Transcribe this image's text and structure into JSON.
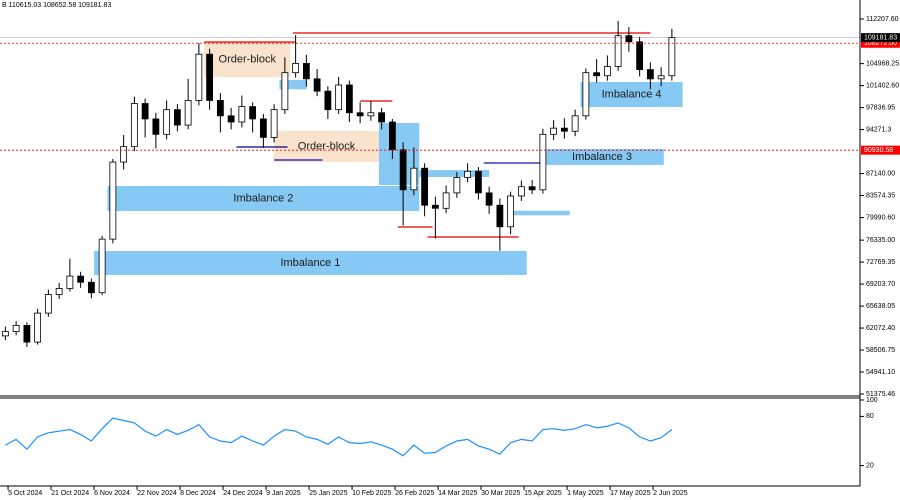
{
  "chart_data": {
    "type": "candlestick",
    "header": "B 110615.03 108652.58 109181.83",
    "x": [
      2,
      6,
      10,
      14,
      18,
      22,
      26,
      30,
      34,
      38,
      42,
      46,
      50,
      54,
      58,
      62,
      66,
      70,
      74,
      78,
      82,
      86,
      90,
      94,
      98,
      102,
      106,
      110,
      114,
      118,
      122,
      126,
      130,
      134,
      138,
      142,
      146,
      150,
      154,
      158,
      162,
      166,
      170,
      174,
      178,
      182,
      186,
      190,
      194,
      198,
      202,
      206,
      210,
      214,
      218,
      222,
      226,
      230,
      234,
      238,
      242,
      246,
      250
    ],
    "candles": [
      [
        60800,
        62300,
        60100,
        61500
      ],
      [
        61500,
        63200,
        60900,
        62500
      ],
      [
        62500,
        63000,
        59000,
        59800
      ],
      [
        59800,
        65200,
        59400,
        64500
      ],
      [
        64500,
        68300,
        63900,
        67500
      ],
      [
        67500,
        69400,
        66800,
        68500
      ],
      [
        68500,
        73300,
        68000,
        70500
      ],
      [
        70500,
        71200,
        68600,
        69500
      ],
      [
        69500,
        70100,
        66900,
        67800
      ],
      [
        67800,
        77000,
        67400,
        76500
      ],
      [
        76500,
        89500,
        75800,
        89000
      ],
      [
        89000,
        93400,
        87800,
        91500
      ],
      [
        91500,
        99600,
        90800,
        98500
      ],
      [
        98500,
        99300,
        93000,
        96000
      ],
      [
        96000,
        97000,
        91200,
        93500
      ],
      [
        93500,
        99000,
        92700,
        97500
      ],
      [
        97500,
        98400,
        94000,
        95000
      ],
      [
        95000,
        102500,
        94300,
        99000
      ],
      [
        99000,
        108300,
        98200,
        106500
      ],
      [
        106500,
        107400,
        97500,
        99000
      ],
      [
        99000,
        100200,
        93800,
        96500
      ],
      [
        96500,
        97800,
        94300,
        95500
      ],
      [
        95500,
        99800,
        94600,
        98000
      ],
      [
        98000,
        98700,
        93800,
        96000
      ],
      [
        96000,
        96800,
        91300,
        93000
      ],
      [
        93000,
        98400,
        92200,
        97500
      ],
      [
        97500,
        106000,
        96800,
        103500
      ],
      [
        103500,
        109600,
        102700,
        105000
      ],
      [
        105000,
        106400,
        101200,
        102500
      ],
      [
        102500,
        104100,
        99700,
        100500
      ],
      [
        100500,
        101300,
        96000,
        97500
      ],
      [
        97500,
        102800,
        96800,
        101500
      ],
      [
        101500,
        102200,
        95500,
        97000
      ],
      [
        97000,
        98700,
        95300,
        96500
      ],
      [
        96500,
        98900,
        95700,
        97000
      ],
      [
        97000,
        97800,
        94300,
        95500
      ],
      [
        95500,
        96000,
        89500,
        91000
      ],
      [
        91000,
        92200,
        78700,
        84500
      ],
      [
        84500,
        91400,
        83600,
        88000
      ],
      [
        88000,
        88800,
        80200,
        82000
      ],
      [
        82000,
        83400,
        76600,
        81500
      ],
      [
        81500,
        85200,
        80700,
        84000
      ],
      [
        84000,
        87400,
        83200,
        86500
      ],
      [
        86500,
        88800,
        85700,
        87500
      ],
      [
        87500,
        88200,
        82900,
        84000
      ],
      [
        84000,
        85000,
        80600,
        82000
      ],
      [
        82000,
        83100,
        74600,
        78500
      ],
      [
        78500,
        84200,
        77300,
        83500
      ],
      [
        83500,
        86000,
        82700,
        85000
      ],
      [
        85000,
        86100,
        83800,
        84500
      ],
      [
        84500,
        94400,
        83900,
        93500
      ],
      [
        93500,
        95800,
        92600,
        94500
      ],
      [
        94500,
        96100,
        92800,
        94000
      ],
      [
        94000,
        97500,
        93200,
        96500
      ],
      [
        96500,
        104200,
        95900,
        103500
      ],
      [
        103500,
        105700,
        101900,
        103000
      ],
      [
        103000,
        106300,
        102200,
        104500
      ],
      [
        104500,
        111900,
        103800,
        109500
      ],
      [
        109500,
        110900,
        106900,
        108500
      ],
      [
        108500,
        109300,
        102900,
        104000
      ],
      [
        104000,
        105200,
        100800,
        102500
      ],
      [
        102500,
        104400,
        101300,
        103000
      ],
      [
        103000,
        110615.03,
        102200,
        109181.83
      ]
    ],
    "colors": {
      "bull": "#ffffff",
      "bear": "#000000",
      "outline": "#000000"
    },
    "xlim": [
      0,
      320
    ],
    "xticks": [
      {
        "value": 3,
        "label": "5 Oct 2024"
      },
      {
        "value": 19,
        "label": "21 Oct 2024"
      },
      {
        "value": 35,
        "label": "6 Nov 2024"
      },
      {
        "value": 51,
        "label": "22 Nov 2024"
      },
      {
        "value": 67,
        "label": "8 Dec 2024"
      },
      {
        "value": 83,
        "label": "24 Dec 2024"
      },
      {
        "value": 99,
        "label": "9 Jan 2025"
      },
      {
        "value": 115,
        "label": "25 Jan 2025"
      },
      {
        "value": 131,
        "label": "10 Feb 2025"
      },
      {
        "value": 147,
        "label": "26 Feb 2025"
      },
      {
        "value": 163,
        "label": "14 Mar 2025"
      },
      {
        "value": 179,
        "label": "30 Mar 2025"
      },
      {
        "value": 195,
        "label": "15 Apr 2025"
      },
      {
        "value": 211,
        "label": "1 May 2025"
      },
      {
        "value": 227,
        "label": "17 May 2025"
      },
      {
        "value": 243,
        "label": "2 Jun 2025"
      }
    ],
    "ylim": [
      51213,
      115290
    ],
    "yticks": [
      {
        "value": 112207.6,
        "label": "112207.60"
      },
      104968.25,
      {
        "value": 101402.6,
        "label": "101402.60"
      },
      97836.95,
      94271.3,
      {
        "value": 87140.0,
        "label": "87140.00"
      },
      83574.35,
      {
        "value": 79990.6,
        "label": "79990.60"
      },
      {
        "value": 76335.0,
        "label": "76335.00"
      },
      72769.35,
      {
        "value": 69203.7,
        "label": "69203.70"
      },
      65638.05,
      {
        "value": 62072.4,
        "label": "62072.40"
      },
      58506.75,
      {
        "value": 54941.1,
        "label": "54941.10"
      },
      51375.46
    ],
    "price_lines": [
      {
        "value": 108272.0,
        "label": "108272.00",
        "color": "#ff0000",
        "style": "dashed"
      },
      {
        "value": 90930.58,
        "color": "#ff0000",
        "style": "dashed"
      },
      {
        "value": 109181.83,
        "color": "#000000",
        "style": "solid"
      }
    ],
    "zones": [
      {
        "label": "Order-block",
        "from": 76,
        "to": 108,
        "low": 102800,
        "high": 108478,
        "color": "#f9e3cc"
      },
      {
        "label": "Order-block",
        "from": 102,
        "to": 141,
        "low": 89010,
        "high": 94040,
        "color": "#f9e3cc"
      },
      {
        "label": "Imbalance 1",
        "from": 35,
        "to": 196,
        "low": 70684,
        "high": 74575,
        "color": "#87c9f5"
      },
      {
        "label": "Imbalance 2",
        "from": 40,
        "to": 156,
        "low": 81065,
        "high": 85120,
        "color": "#87c9f5"
      },
      {
        "from": 141,
        "to": 156,
        "low": 85280,
        "high": 95340,
        "color": "#87c9f5"
      },
      {
        "from": 156,
        "to": 182,
        "low": 86580,
        "high": 87700,
        "color": "#87c9f5"
      },
      {
        "from": 190,
        "to": 212,
        "low": 80360,
        "high": 81100,
        "color": "#87c9f5"
      },
      {
        "from": 104,
        "to": 114,
        "low": 100800,
        "high": 102300,
        "color": "#87c9f5"
      },
      {
        "label": "Imbalance 3",
        "from": 201,
        "to": 247,
        "low": 88530,
        "high": 91120,
        "color": "#87c9f5"
      },
      {
        "label": "Imbalance 4",
        "from": 216,
        "to": 254,
        "low": 97934,
        "high": 101990,
        "color": "#87c9f5"
      }
    ],
    "levels": [
      {
        "price": 108478,
        "from": 76,
        "to": 110,
        "color": "#e00000"
      },
      {
        "price": 109937,
        "from": 109,
        "to": 242,
        "color": "#e00000"
      },
      {
        "price": 91446,
        "from": 88,
        "to": 107,
        "color": "#00008b"
      },
      {
        "price": 89338,
        "from": 102,
        "to": 120,
        "color": "#1010c0"
      },
      {
        "price": 98907,
        "from": 134,
        "to": 146,
        "color": "#e00000"
      },
      {
        "price": 78470,
        "from": 148,
        "to": 161,
        "color": "#e00000"
      },
      {
        "price": 76847,
        "from": 159,
        "to": 193,
        "color": "#e00000"
      },
      {
        "price": 88850,
        "from": 180,
        "to": 201,
        "color": "#1010c0"
      }
    ],
    "indicator": {
      "type": "line",
      "color": "#1e90ff",
      "ylim": [
        0,
        100
      ],
      "yticks": [
        20,
        80,
        100
      ],
      "values": [
        45,
        52,
        40,
        55,
        60,
        62,
        64,
        58,
        50,
        65,
        78,
        75,
        72,
        62,
        56,
        64,
        58,
        63,
        70,
        55,
        50,
        48,
        56,
        50,
        45,
        56,
        64,
        62,
        55,
        52,
        46,
        55,
        48,
        47,
        49,
        45,
        40,
        32,
        45,
        35,
        36,
        44,
        50,
        52,
        44,
        40,
        34,
        48,
        52,
        50,
        64,
        65,
        63,
        65,
        70,
        66,
        68,
        72,
        66,
        55,
        50,
        54,
        64
      ]
    }
  }
}
